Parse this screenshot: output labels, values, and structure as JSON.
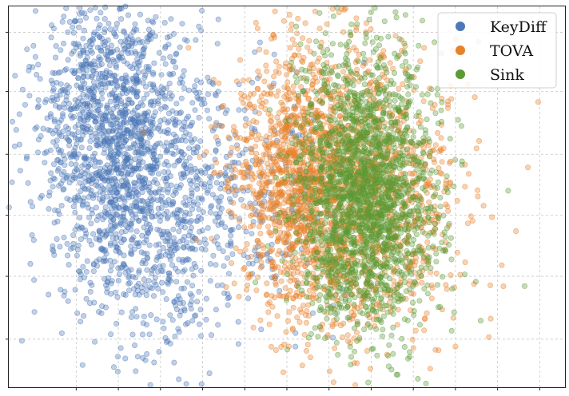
{
  "chart_data": {
    "type": "scatter",
    "title": "",
    "xlabel": "",
    "ylabel": "",
    "xlim": [
      -6.6,
      6.6
    ],
    "ylim": [
      -5.3,
      5.0
    ],
    "x_ticks": [
      -5,
      -4,
      -3,
      -2,
      -1,
      0,
      1,
      2,
      3,
      4,
      5,
      6
    ],
    "y_ticks": [
      -4.0,
      -2.3,
      -0.65,
      1.0,
      2.7,
      4.3
    ],
    "grid": true,
    "point_alpha": 0.35,
    "legend": {
      "placement": "top-right",
      "items": [
        "KeyDiff",
        "TOVA",
        "Sink"
      ]
    },
    "series": [
      {
        "name": "KeyDiff",
        "color": "#4C78B8",
        "n_points": 2200,
        "clusters": [
          {
            "x": -4.2,
            "y": 1.8,
            "sx": 0.9,
            "sy": 1.9,
            "weight": 0.55
          },
          {
            "x": -3.2,
            "y": -0.6,
            "sx": 1.0,
            "sy": 2.0,
            "weight": 0.35
          },
          {
            "x": -1.0,
            "y": -0.3,
            "sx": 1.2,
            "sy": 1.8,
            "weight": 0.1
          }
        ],
        "outliers": [
          [
            -5.2,
            4.3
          ],
          [
            -3.6,
            4.0
          ],
          [
            -6.0,
            -2.4
          ],
          [
            -4.4,
            -3.3
          ],
          [
            -2.4,
            -3.6
          ],
          [
            -0.3,
            3.7
          ]
        ]
      },
      {
        "name": "TOVA",
        "color": "#E8822A",
        "n_points": 2300,
        "clusters": [
          {
            "x": 0.2,
            "y": 0.3,
            "sx": 0.75,
            "sy": 1.7,
            "weight": 0.45
          },
          {
            "x": 1.8,
            "y": 0.0,
            "sx": 1.1,
            "sy": 1.9,
            "weight": 0.55
          }
        ],
        "outliers": [
          [
            4.0,
            -4.2
          ],
          [
            3.4,
            -4.8
          ],
          [
            5.1,
            -2.0
          ],
          [
            4.3,
            2.9
          ],
          [
            3.6,
            -4.3
          ]
        ]
      },
      {
        "name": "Sink",
        "color": "#5B9A35",
        "n_points": 2100,
        "clusters": [
          {
            "x": 1.8,
            "y": 0.6,
            "sx": 0.75,
            "sy": 1.8,
            "weight": 0.6
          },
          {
            "x": 2.0,
            "y": -1.2,
            "sx": 0.85,
            "sy": 1.5,
            "weight": 0.4
          }
        ],
        "outliers": [
          [
            3.3,
            -5.2
          ],
          [
            2.6,
            4.7
          ],
          [
            4.6,
            -3.5
          ],
          [
            1.5,
            4.3
          ]
        ]
      }
    ]
  }
}
